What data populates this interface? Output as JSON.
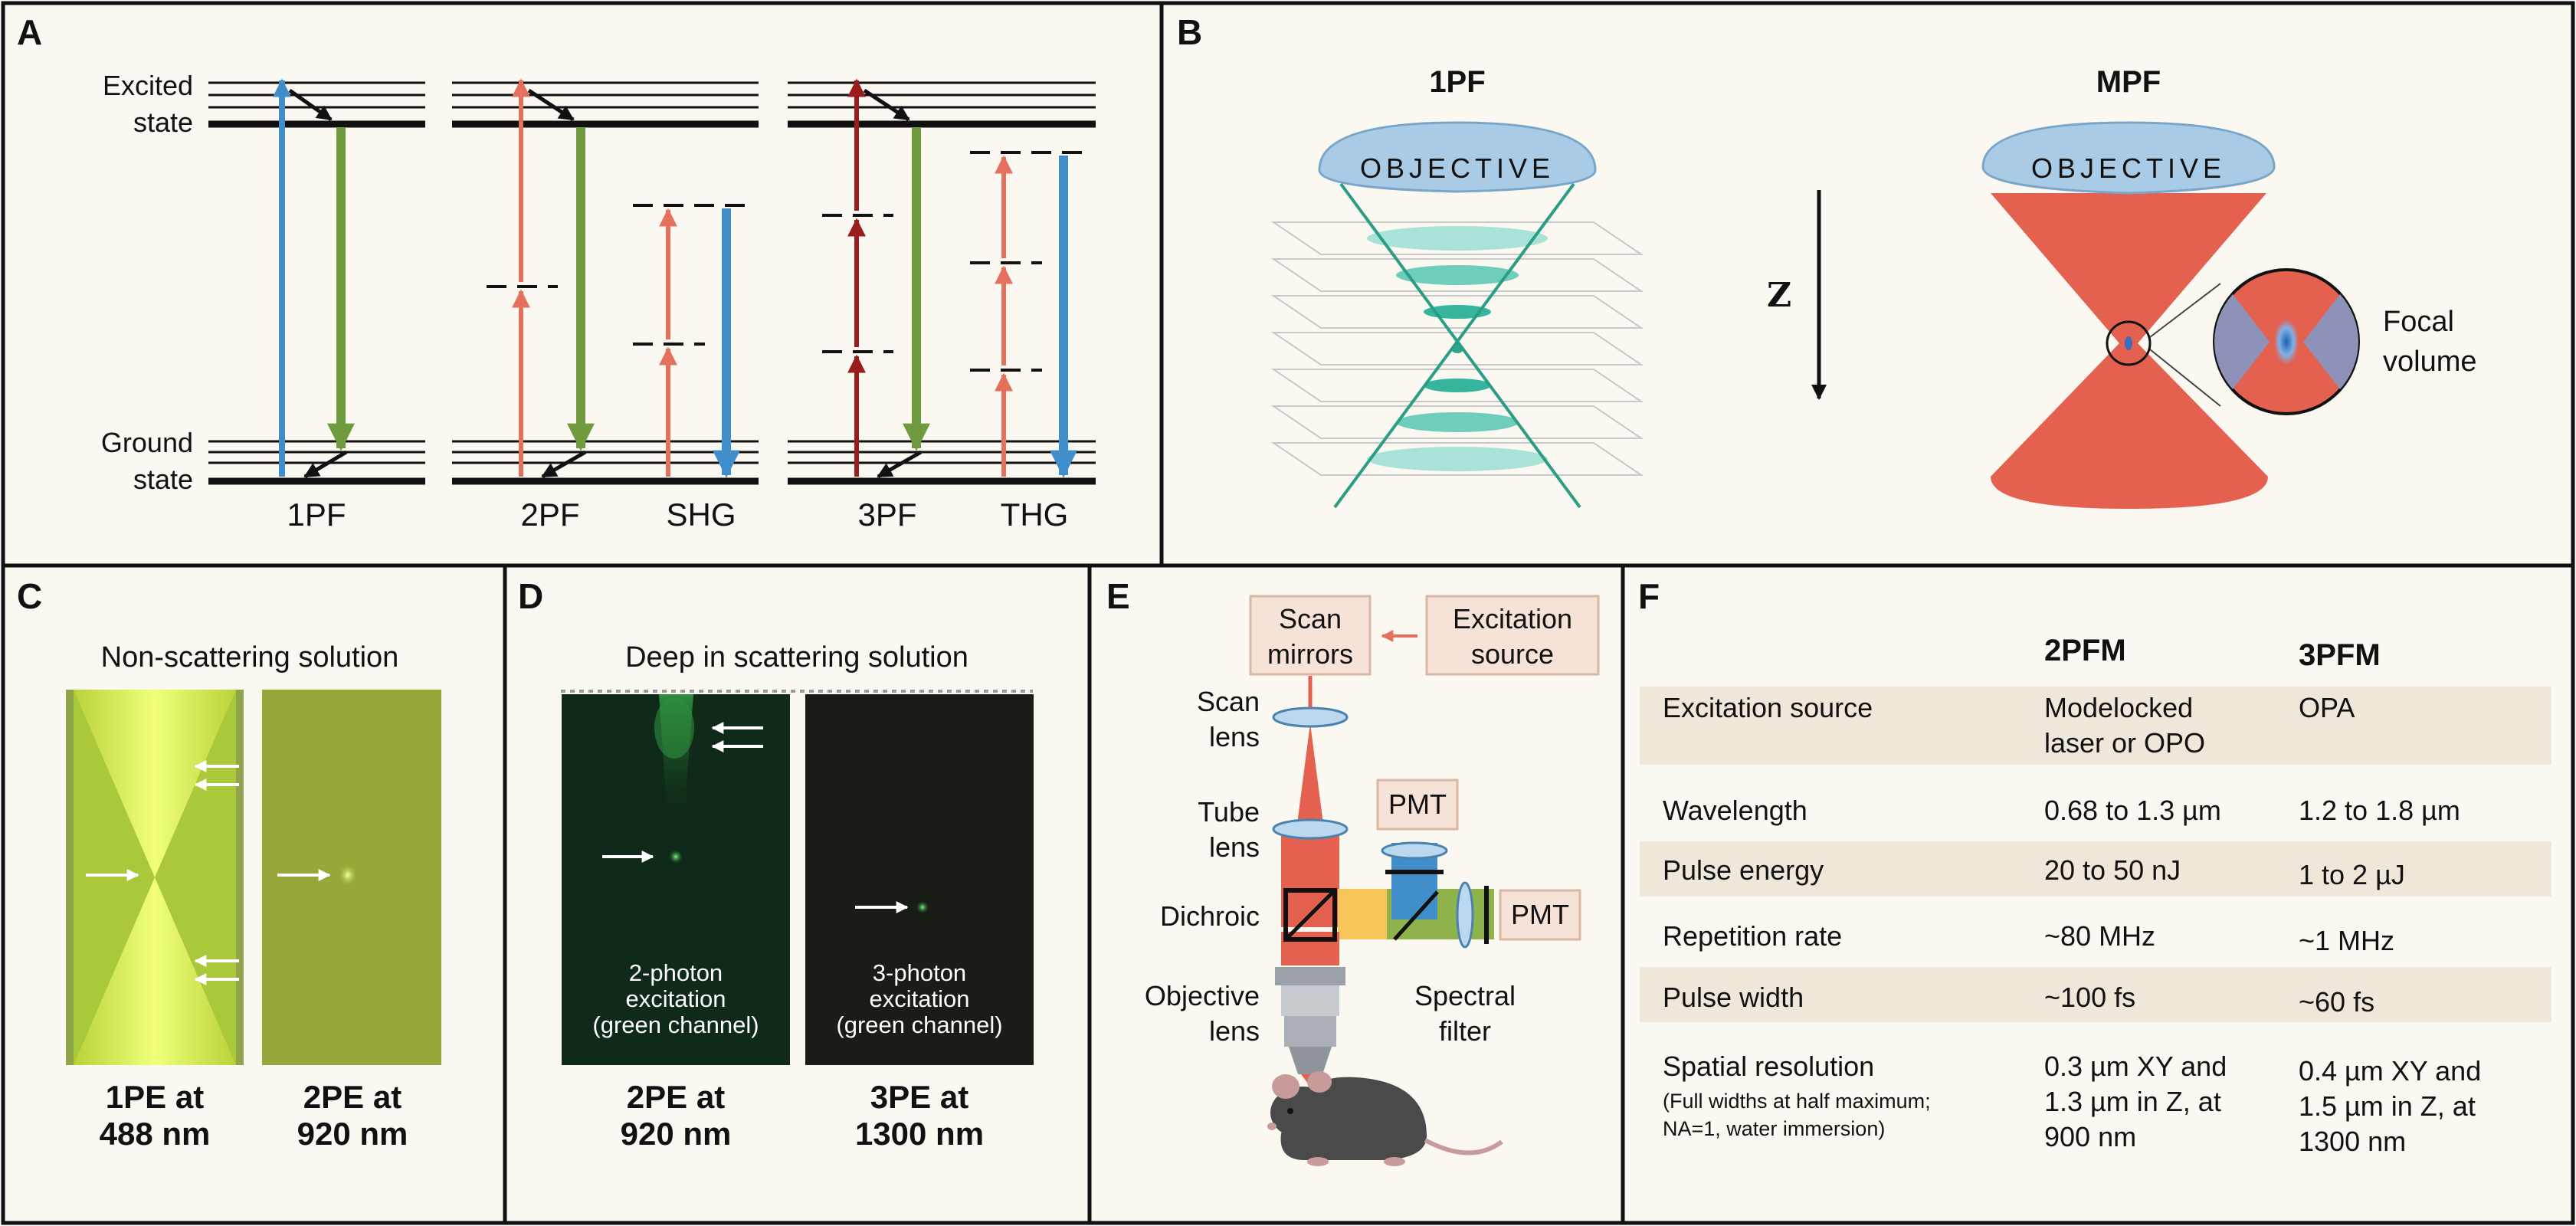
{
  "panels": {
    "A": {
      "letter": "A",
      "excited_state": [
        "Excited",
        "state"
      ],
      "ground_state": [
        "Ground",
        "state"
      ],
      "processes": [
        "1PF",
        "2PF",
        "SHG",
        "3PF",
        "THG"
      ]
    },
    "B": {
      "letter": "B",
      "left_title": "1PF",
      "right_title": "MPF",
      "objective_label": "OBJECTIVE",
      "z_label": "Z",
      "focal_volume": [
        "Focal",
        "volume"
      ]
    },
    "C": {
      "letter": "C",
      "title": "Non-scattering solution",
      "caption_left": [
        "1PE at",
        "488 nm"
      ],
      "caption_right": [
        "2PE at",
        "920 nm"
      ]
    },
    "D": {
      "letter": "D",
      "title": "Deep in scattering solution",
      "image_left_text": [
        "2-photon",
        "excitation",
        "(green channel)"
      ],
      "image_right_text": [
        "3-photon",
        "excitation",
        "(green channel)"
      ],
      "caption_left": [
        "2PE at",
        "920 nm"
      ],
      "caption_right": [
        "3PE at",
        "1300 nm"
      ]
    },
    "E": {
      "letter": "E",
      "scan_mirrors": [
        "Scan",
        "mirrors"
      ],
      "excitation_source": [
        "Excitation",
        "source"
      ],
      "scan_lens": [
        "Scan",
        "lens"
      ],
      "tube_lens": [
        "Tube",
        "lens"
      ],
      "pmt_top": "PMT",
      "pmt_right": "PMT",
      "dichroic": "Dichroic",
      "objective_lens": [
        "Objective",
        "lens"
      ],
      "spectral_filter": [
        "Spectral",
        "filter"
      ]
    },
    "F": {
      "letter": "F",
      "col_2pfm": "2PFM",
      "col_3pfm": "3PFM",
      "rows": [
        {
          "label": [
            "Excitation source"
          ],
          "c2": [
            "Modelocked",
            "laser or OPO"
          ],
          "c3": [
            "OPA"
          ]
        },
        {
          "label": [
            "Wavelength"
          ],
          "c2": [
            "0.68 to 1.3 µm"
          ],
          "c3": [
            "1.2 to 1.8 µm"
          ]
        },
        {
          "label": [
            "Pulse energy"
          ],
          "c2": [
            "20 to 50 nJ"
          ],
          "c3": [
            "1 to 2 µJ"
          ]
        },
        {
          "label": [
            "Repetition rate"
          ],
          "c2": [
            "~80 MHz"
          ],
          "c3": [
            "~1 MHz"
          ]
        },
        {
          "label": [
            "Pulse width"
          ],
          "c2": [
            "~100 fs"
          ],
          "c3": [
            "~60 fs"
          ]
        },
        {
          "label": [
            "Spatial resolution"
          ],
          "note": [
            "(Full widths at half maximum;",
            "NA=1, water immersion)"
          ],
          "c2": [
            "0.3 µm XY and",
            "1.3 µm in Z, at",
            "900 nm"
          ],
          "c3": [
            "0.4 µm XY and",
            "1.5 µm in Z, at",
            "1300 nm"
          ]
        }
      ]
    }
  },
  "colors": {
    "panel_bg": "#fbf8f1",
    "blue_arrow": "#3f8dc9",
    "green_arrow": "#6f9a3e",
    "red_arrow": "#e5705e",
    "dark_red_arrow": "#9b1c1c",
    "objective": "#a9cbe6",
    "laser_cone": "#e4604f",
    "teal": "#5cc4ae",
    "table_band": "#efe8da",
    "label_box": "#f6e2d6"
  }
}
